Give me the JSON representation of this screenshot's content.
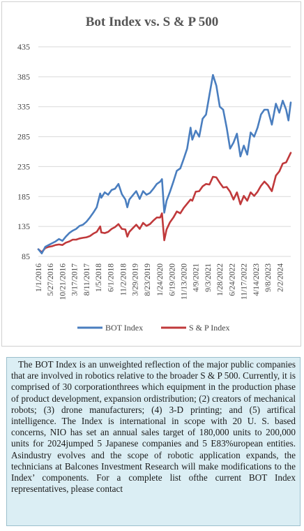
{
  "chart_data": {
    "type": "line",
    "title": "Bot Index vs. S & P 500",
    "ylim": [
      85,
      435
    ],
    "y_ticks": [
      85,
      135,
      185,
      235,
      285,
      335,
      385,
      435
    ],
    "x_tick_labels": [
      "1/1/2016",
      "5/27/2016",
      "10/21/2016",
      "3/17/2017",
      "8/11/2017",
      "1/5/2018",
      "6/1/2018",
      "11/2/2018",
      "3/29/2019",
      "8/23/2019",
      "1/24/2020",
      "6/19/2020",
      "11/13/2020",
      "4/9/2021",
      "9/3/2021",
      "1/28/2022",
      "6/24/2022",
      "11/17/2022",
      "4/14/2023",
      "9/8/2023",
      "2/2/2024"
    ],
    "x_tick_dates": [
      "2016-01-01",
      "2016-05-27",
      "2016-10-21",
      "2017-03-17",
      "2017-08-11",
      "2018-01-05",
      "2018-06-01",
      "2018-11-02",
      "2019-03-29",
      "2019-08-23",
      "2020-01-24",
      "2020-06-19",
      "2020-11-13",
      "2021-04-09",
      "2021-09-03",
      "2022-01-28",
      "2022-06-24",
      "2022-11-17",
      "2023-04-14",
      "2023-09-08",
      "2024-02-02"
    ],
    "x_range": [
      "2016-01-01",
      "2024-06-14"
    ],
    "legend_position": "bottom",
    "series": [
      {
        "name": "BOT Index",
        "color": "#4a7ebf",
        "points": [
          [
            "2016-01-01",
            97
          ],
          [
            "2016-02-12",
            90
          ],
          [
            "2016-03-25",
            101
          ],
          [
            "2016-05-06",
            104
          ],
          [
            "2016-06-17",
            107
          ],
          [
            "2016-07-29",
            110
          ],
          [
            "2016-09-09",
            114
          ],
          [
            "2016-10-21",
            111
          ],
          [
            "2016-12-02",
            118
          ],
          [
            "2017-01-13",
            124
          ],
          [
            "2017-02-24",
            128
          ],
          [
            "2017-04-07",
            131
          ],
          [
            "2017-05-19",
            136
          ],
          [
            "2017-06-30",
            138
          ],
          [
            "2017-08-11",
            143
          ],
          [
            "2017-09-22",
            150
          ],
          [
            "2017-11-03",
            158
          ],
          [
            "2017-12-15",
            167
          ],
          [
            "2018-01-26",
            190
          ],
          [
            "2018-02-09",
            183
          ],
          [
            "2018-03-23",
            192
          ],
          [
            "2018-05-04",
            188
          ],
          [
            "2018-06-15",
            196
          ],
          [
            "2018-07-27",
            198
          ],
          [
            "2018-09-07",
            206
          ],
          [
            "2018-10-19",
            189
          ],
          [
            "2018-11-30",
            180
          ],
          [
            "2018-12-24",
            167
          ],
          [
            "2019-01-18",
            180
          ],
          [
            "2019-03-01",
            187
          ],
          [
            "2019-04-12",
            194
          ],
          [
            "2019-05-24",
            181
          ],
          [
            "2019-07-05",
            194
          ],
          [
            "2019-08-16",
            188
          ],
          [
            "2019-09-27",
            191
          ],
          [
            "2019-11-08",
            198
          ],
          [
            "2019-12-20",
            206
          ],
          [
            "2020-01-31",
            210
          ],
          [
            "2020-02-21",
            214
          ],
          [
            "2020-03-20",
            158
          ],
          [
            "2020-04-17",
            178
          ],
          [
            "2020-05-29",
            193
          ],
          [
            "2020-07-10",
            210
          ],
          [
            "2020-08-21",
            228
          ],
          [
            "2020-10-02",
            232
          ],
          [
            "2020-11-13",
            248
          ],
          [
            "2020-12-25",
            265
          ],
          [
            "2021-02-05",
            300
          ],
          [
            "2021-02-26",
            280
          ],
          [
            "2021-04-09",
            295
          ],
          [
            "2021-05-21",
            285
          ],
          [
            "2021-07-02",
            315
          ],
          [
            "2021-08-13",
            322
          ],
          [
            "2021-09-24",
            355
          ],
          [
            "2021-11-05",
            388
          ],
          [
            "2021-12-17",
            370
          ],
          [
            "2022-01-28",
            335
          ],
          [
            "2022-03-11",
            330
          ],
          [
            "2022-04-22",
            300
          ],
          [
            "2022-06-03",
            265
          ],
          [
            "2022-07-15",
            275
          ],
          [
            "2022-08-26",
            290
          ],
          [
            "2022-10-07",
            252
          ],
          [
            "2022-11-18",
            270
          ],
          [
            "2022-12-30",
            255
          ],
          [
            "2023-02-10",
            292
          ],
          [
            "2023-03-24",
            285
          ],
          [
            "2023-05-05",
            300
          ],
          [
            "2023-06-16",
            322
          ],
          [
            "2023-07-28",
            330
          ],
          [
            "2023-09-08",
            330
          ],
          [
            "2023-10-27",
            305
          ],
          [
            "2023-12-15",
            340
          ],
          [
            "2024-01-26",
            325
          ],
          [
            "2024-03-08",
            345
          ],
          [
            "2024-04-19",
            330
          ],
          [
            "2024-05-17",
            312
          ],
          [
            "2024-06-14",
            342
          ]
        ]
      },
      {
        "name": "S & P Index",
        "color": "#c0393b",
        "points": [
          [
            "2016-01-01",
            97
          ],
          [
            "2016-02-12",
            92
          ],
          [
            "2016-03-25",
            99
          ],
          [
            "2016-05-06",
            101
          ],
          [
            "2016-06-17",
            102
          ],
          [
            "2016-07-29",
            104
          ],
          [
            "2016-09-09",
            105
          ],
          [
            "2016-10-21",
            104
          ],
          [
            "2016-12-02",
            108
          ],
          [
            "2017-01-13",
            110
          ],
          [
            "2017-02-24",
            113
          ],
          [
            "2017-04-07",
            113
          ],
          [
            "2017-05-19",
            115
          ],
          [
            "2017-06-30",
            116
          ],
          [
            "2017-08-11",
            117
          ],
          [
            "2017-09-22",
            119
          ],
          [
            "2017-11-03",
            123
          ],
          [
            "2017-12-15",
            126
          ],
          [
            "2018-01-26",
            135
          ],
          [
            "2018-02-09",
            125
          ],
          [
            "2018-03-23",
            124
          ],
          [
            "2018-05-04",
            126
          ],
          [
            "2018-06-15",
            131
          ],
          [
            "2018-07-27",
            134
          ],
          [
            "2018-09-07",
            139
          ],
          [
            "2018-10-19",
            131
          ],
          [
            "2018-11-30",
            130
          ],
          [
            "2018-12-24",
            118
          ],
          [
            "2019-01-18",
            126
          ],
          [
            "2019-03-01",
            132
          ],
          [
            "2019-04-12",
            138
          ],
          [
            "2019-05-24",
            131
          ],
          [
            "2019-07-05",
            141
          ],
          [
            "2019-08-16",
            136
          ],
          [
            "2019-09-27",
            139
          ],
          [
            "2019-11-08",
            145
          ],
          [
            "2019-12-20",
            150
          ],
          [
            "2020-01-31",
            150
          ],
          [
            "2020-02-21",
            157
          ],
          [
            "2020-03-20",
            112
          ],
          [
            "2020-04-17",
            130
          ],
          [
            "2020-05-29",
            142
          ],
          [
            "2020-07-10",
            150
          ],
          [
            "2020-08-21",
            160
          ],
          [
            "2020-10-02",
            157
          ],
          [
            "2020-11-13",
            166
          ],
          [
            "2020-12-25",
            173
          ],
          [
            "2021-02-05",
            180
          ],
          [
            "2021-02-26",
            178
          ],
          [
            "2021-04-09",
            193
          ],
          [
            "2021-05-21",
            194
          ],
          [
            "2021-07-02",
            202
          ],
          [
            "2021-08-13",
            206
          ],
          [
            "2021-09-24",
            205
          ],
          [
            "2021-11-05",
            218
          ],
          [
            "2021-12-17",
            217
          ],
          [
            "2022-01-28",
            208
          ],
          [
            "2022-03-11",
            200
          ],
          [
            "2022-04-22",
            201
          ],
          [
            "2022-06-03",
            193
          ],
          [
            "2022-07-15",
            180
          ],
          [
            "2022-08-26",
            192
          ],
          [
            "2022-10-07",
            172
          ],
          [
            "2022-11-18",
            186
          ],
          [
            "2022-12-30",
            178
          ],
          [
            "2023-02-10",
            192
          ],
          [
            "2023-03-24",
            186
          ],
          [
            "2023-05-05",
            193
          ],
          [
            "2023-06-16",
            203
          ],
          [
            "2023-07-28",
            210
          ],
          [
            "2023-09-08",
            204
          ],
          [
            "2023-10-27",
            194
          ],
          [
            "2023-12-15",
            220
          ],
          [
            "2024-01-26",
            227
          ],
          [
            "2024-03-08",
            240
          ],
          [
            "2024-04-19",
            242
          ],
          [
            "2024-05-17",
            250
          ],
          [
            "2024-06-14",
            258
          ]
        ]
      }
    ]
  },
  "description": "The BOT Index is an unweighted reflection of the major public companies that are involved in robotics relative to the broader S & P 500. Currently, it is comprised of 30 corporationthrees which equipment in the production phase of product development, expansion ordistribution; (2) creators of mechanical robots; (3) drone manufacturers; (4) 3-D printing; and (5) artifical intelligence. The Index is international in scope with 20 U. S. based concerns, NIO has set an annual sales target of 180,000 units to 200,000 units for 2024jumped 5 Japanese companies and 5 E83%uropean entities. Asindustry evolves and the scope of robotic application expands, the technicians at Balcones Investment Research will make modifications to the Index’ components. For a  complete list ofthe current BOT Index representatives, please contact"
}
